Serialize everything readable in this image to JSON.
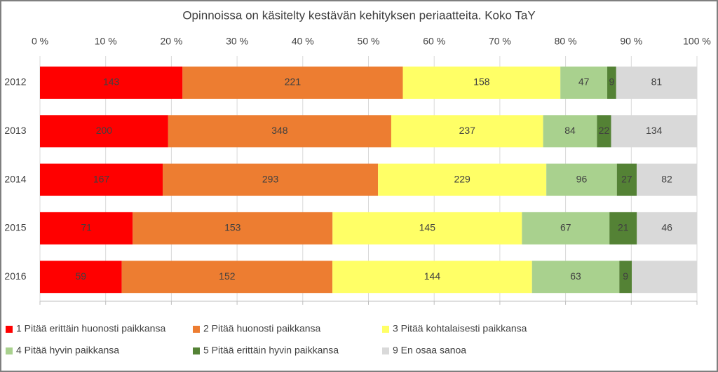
{
  "chart_data": {
    "type": "bar",
    "orientation": "horizontal",
    "stacking": "percent",
    "title": "Opinnoissa on käsitelty kestävän kehityksen periaatteita. Koko TaY",
    "categories": [
      "2012",
      "2013",
      "2014",
      "2015",
      "2016"
    ],
    "series": [
      {
        "name": "1 Pitää erittäin huonosti paikkansa",
        "color": "#ff0000",
        "values": [
          143,
          200,
          167,
          71,
          59
        ]
      },
      {
        "name": "2 Pitää huonosti paikkansa",
        "color": "#ed7d31",
        "values": [
          221,
          348,
          293,
          153,
          152
        ]
      },
      {
        "name": "3 Pitää kohtalaisesti paikkansa",
        "color": "#ffff66",
        "values": [
          158,
          237,
          229,
          145,
          144
        ]
      },
      {
        "name": "4 Pitää hyvin paikkansa",
        "color": "#a9d18e",
        "values": [
          47,
          84,
          96,
          67,
          63
        ]
      },
      {
        "name": "5 Pitää erittäin hyvin paikkansa",
        "color": "#548235",
        "values": [
          9,
          22,
          27,
          21,
          9
        ]
      },
      {
        "name": "9 En osaa sanoa",
        "color": "#d9d9d9",
        "values": [
          81,
          134,
          82,
          46,
          47
        ],
        "value_labels": [
          "81",
          "134",
          "82",
          "46",
          null
        ]
      }
    ],
    "xlim": [
      0,
      100
    ],
    "xticks": [
      {
        "value": 0,
        "label": "0 %"
      },
      {
        "value": 10,
        "label": "10 %"
      },
      {
        "value": 20,
        "label": "20 %"
      },
      {
        "value": 30,
        "label": "30 %"
      },
      {
        "value": 40,
        "label": "40 %"
      },
      {
        "value": 50,
        "label": "50 %"
      },
      {
        "value": 60,
        "label": "60 %"
      },
      {
        "value": 70,
        "label": "70 %"
      },
      {
        "value": 80,
        "label": "80 %"
      },
      {
        "value": 90,
        "label": "90 %"
      },
      {
        "value": 100,
        "label": "100 %"
      }
    ],
    "grid": true,
    "legend": "bottom"
  }
}
